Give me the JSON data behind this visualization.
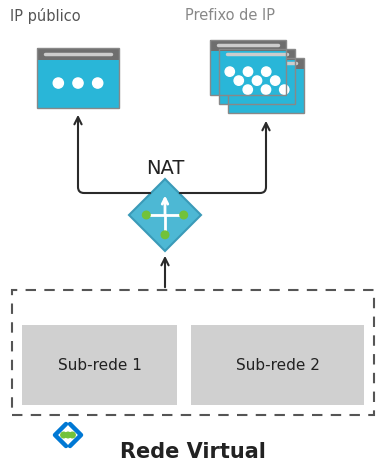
{
  "bg_color": "#ffffff",
  "label_ip_publico": "IP público",
  "label_prefixo": "Prefixo de IP",
  "label_nat": "NAT",
  "label_subnet1": "Sub-rede 1",
  "label_subnet2": "Sub-rede 2",
  "label_rede_virtual": "Rede Virtual",
  "cyan_color": "#29b6d8",
  "gray_titlebar": "#6e6e6e",
  "subnet_fill": "#d0d0d0",
  "dashed_border": "#555555",
  "arrow_color": "#2a2a2a",
  "nat_diamond_fill": "#4db8d4",
  "nat_diamond_border": "#3a9ab8",
  "nat_line_color": "#ffffff",
  "green_dot": "#72c23a",
  "vnet_cyan": "#0078d4",
  "vnet_dot": "#72c23a",
  "figsize": [
    3.87,
    4.59
  ],
  "dpi": 100
}
